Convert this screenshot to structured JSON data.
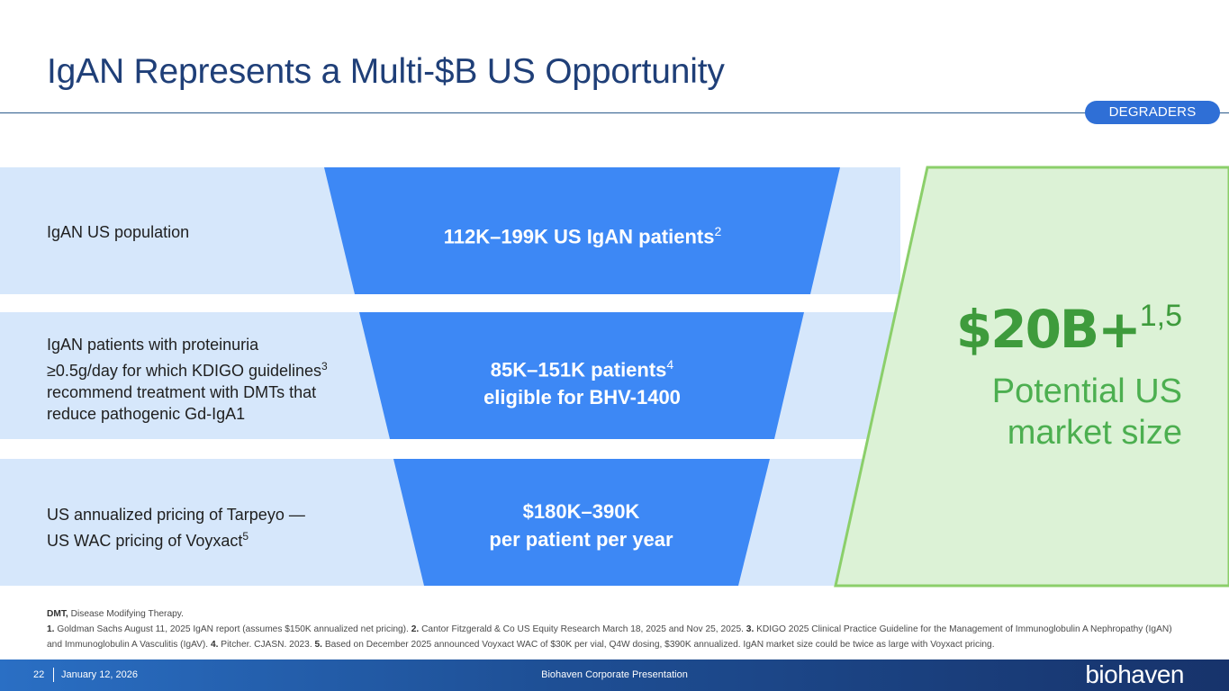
{
  "slide": {
    "title": "IgAN Represents a Multi-$B US Opportunity",
    "badge": "DEGRADERS"
  },
  "rows": [
    {
      "label_lines": [
        "IgAN US population"
      ],
      "funnel_main": "112K–199K US IgAN patients",
      "funnel_sup": "2"
    },
    {
      "label_lines": [
        "IgAN patients with proteinuria",
        "≥0.5g/day for which KDIGO guidelines",
        "recommend treatment with DMTs that",
        "reduce pathogenic Gd-IgA1"
      ],
      "label_sup": "3",
      "funnel_line1": "85K–151K patients",
      "funnel_sup": "4",
      "funnel_line2": "eligible for BHV-1400"
    },
    {
      "label_line1": "US annualized pricing of Tarpeyo —",
      "label_line2": "US WAC pricing of Voyxact",
      "label_sup": "5",
      "funnel_line1": "$180K–390K",
      "funnel_line2": "per patient per year"
    }
  ],
  "market": {
    "value": "$20B+",
    "value_sup": "1,5",
    "subtitle": "Potential US market size"
  },
  "footnotes": {
    "dmt_abbr": "DMT,",
    "dmt_def": " Disease Modifying Therapy.",
    "refs": [
      {
        "num": "1.",
        "text": " Goldman Sachs August 11, 2025 IgAN report (assumes $150K annualized net pricing). "
      },
      {
        "num": "2.",
        "text": " Cantor Fitzgerald & Co US Equity Research March 18, 2025 and Nov 25, 2025. "
      },
      {
        "num": "3.",
        "text": " KDIGO 2025 Clinical Practice Guideline for the Management of Immunoglobulin A Nephropathy (IgAN) and Immunoglobulin A Vasculitis (IgAV). "
      },
      {
        "num": "4.",
        "text": " Pitcher. CJASN. 2023. "
      },
      {
        "num": "5.",
        "text": " Based on December 2025 announced Voyxact WAC of $30K per vial, Q4W dosing, $390K annualized. IgAN market size could be twice as large with Voyxact pricing."
      }
    ]
  },
  "footer": {
    "page": "22",
    "date": "January 12, 2026",
    "center": "Biohaven Corporate Presentation",
    "logo": "biohaven"
  },
  "colors": {
    "title": "#1f3f78",
    "funnel_blue": "#3d88f5",
    "row_bg": "#d6e7fb",
    "market_green": "#3e9b3c",
    "market_bg": "#dcf2d6"
  }
}
